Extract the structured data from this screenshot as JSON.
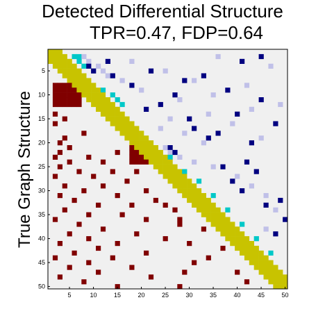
{
  "title": "Detected Differential Structure",
  "subtitle": "TPR=0.47, FDP=0.64",
  "chart_data": {
    "type": "heatmap",
    "n": 50,
    "ylabel": "True Graph Structure",
    "xlabel": "",
    "xticks": [
      5,
      10,
      15,
      20,
      25,
      30,
      35,
      40,
      45,
      50
    ],
    "yticks": [
      5,
      10,
      15,
      20,
      25,
      30,
      35,
      40,
      45,
      50
    ],
    "colors": {
      "background": "#f0f0f0",
      "diagonal": "#c8c300",
      "true_edge": "#800000",
      "band_detected": "#00c8c8",
      "detected_strong": "#000080",
      "detected_weak": "#c0c0e8"
    },
    "lower_blocks": [
      [
        8,
        12,
        2,
        7
      ],
      [
        20,
        24,
        18,
        23
      ]
    ],
    "lower_points": [
      [
        11,
        5
      ],
      [
        14,
        2
      ],
      [
        15,
        4
      ],
      [
        16,
        2
      ],
      [
        18,
        8
      ],
      [
        19,
        4
      ],
      [
        20,
        3
      ],
      [
        21,
        5
      ],
      [
        22,
        3
      ],
      [
        22,
        15
      ],
      [
        23,
        2
      ],
      [
        23,
        9
      ],
      [
        24,
        5
      ],
      [
        24,
        12
      ],
      [
        25,
        3
      ],
      [
        26,
        7
      ],
      [
        26,
        14
      ],
      [
        27,
        2
      ],
      [
        27,
        10
      ],
      [
        28,
        17
      ],
      [
        29,
        4
      ],
      [
        29,
        12
      ],
      [
        30,
        8
      ],
      [
        30,
        21
      ],
      [
        31,
        3
      ],
      [
        31,
        15
      ],
      [
        32,
        6
      ],
      [
        32,
        23
      ],
      [
        33,
        11
      ],
      [
        33,
        18
      ],
      [
        34,
        4
      ],
      [
        34,
        27
      ],
      [
        35,
        9
      ],
      [
        35,
        16
      ],
      [
        36,
        2
      ],
      [
        36,
        21
      ],
      [
        37,
        7
      ],
      [
        37,
        28
      ],
      [
        38,
        12
      ],
      [
        38,
        33
      ],
      [
        39,
        5
      ],
      [
        39,
        19
      ],
      [
        40,
        9
      ],
      [
        40,
        25
      ],
      [
        41,
        3
      ],
      [
        41,
        15
      ],
      [
        42,
        11
      ],
      [
        42,
        37
      ],
      [
        43,
        6
      ],
      [
        43,
        21
      ],
      [
        44,
        2
      ],
      [
        44,
        14
      ],
      [
        45,
        9
      ],
      [
        45,
        31
      ],
      [
        46,
        5
      ],
      [
        46,
        18
      ],
      [
        47,
        11
      ],
      [
        47,
        40
      ],
      [
        48,
        3
      ],
      [
        48,
        22
      ],
      [
        49,
        8
      ],
      [
        49,
        42
      ],
      [
        50,
        15
      ],
      [
        50,
        28
      ],
      [
        26,
        19
      ],
      [
        33,
        25
      ],
      [
        41,
        30
      ],
      [
        36,
        28
      ],
      [
        44,
        34
      ],
      [
        47,
        29
      ]
    ],
    "upper_band": [
      [
        2,
        6
      ],
      [
        3,
        7
      ],
      [
        4,
        8
      ],
      [
        7,
        9
      ],
      [
        8,
        10
      ],
      [
        9,
        11
      ],
      [
        10,
        12
      ],
      [
        11,
        13
      ],
      [
        12,
        14
      ],
      [
        13,
        15
      ],
      [
        14,
        16
      ],
      [
        22,
        24
      ],
      [
        23,
        25
      ],
      [
        24,
        26
      ],
      [
        25,
        27
      ],
      [
        26,
        28
      ],
      [
        27,
        29
      ],
      [
        28,
        30
      ],
      [
        29,
        31
      ],
      [
        30,
        32
      ],
      [
        31,
        33
      ],
      [
        32,
        34
      ],
      [
        33,
        35
      ],
      [
        34,
        36
      ],
      [
        35,
        37
      ],
      [
        36,
        38
      ],
      [
        37,
        39
      ],
      [
        38,
        40
      ],
      [
        39,
        41
      ],
      [
        40,
        42
      ],
      [
        41,
        43
      ],
      [
        42,
        44
      ],
      [
        43,
        45
      ],
      [
        44,
        46
      ],
      [
        45,
        47
      ],
      [
        46,
        48
      ],
      [
        47,
        49
      ],
      [
        2,
        7
      ],
      [
        9,
        12
      ],
      [
        10,
        14
      ],
      [
        11,
        15
      ],
      [
        12,
        16
      ],
      [
        23,
        26
      ],
      [
        26,
        29
      ],
      [
        28,
        32
      ],
      [
        31,
        35
      ],
      [
        34,
        38
      ],
      [
        37,
        41
      ],
      [
        40,
        44
      ],
      [
        43,
        47
      ]
    ],
    "upper_strong": [
      [
        4,
        9
      ],
      [
        5,
        10
      ],
      [
        3,
        13
      ],
      [
        6,
        14
      ],
      [
        8,
        18
      ],
      [
        5,
        22
      ],
      [
        12,
        24
      ],
      [
        10,
        27
      ],
      [
        15,
        30
      ],
      [
        6,
        33
      ],
      [
        18,
        36
      ],
      [
        9,
        38
      ],
      [
        14,
        40
      ],
      [
        3,
        41
      ],
      [
        20,
        43
      ],
      [
        11,
        45
      ],
      [
        25,
        37
      ],
      [
        16,
        48
      ],
      [
        7,
        29
      ],
      [
        21,
        26
      ],
      [
        22,
        27
      ],
      [
        19,
        34
      ],
      [
        28,
        39
      ],
      [
        30,
        41
      ],
      [
        33,
        46
      ],
      [
        39,
        48
      ],
      [
        36,
        50
      ],
      [
        2,
        45
      ],
      [
        13,
        21
      ],
      [
        17,
        31
      ],
      [
        26,
        44
      ],
      [
        32,
        49
      ],
      [
        24,
        42
      ]
    ],
    "upper_weak": [
      [
        2,
        8
      ],
      [
        3,
        9
      ],
      [
        4,
        11
      ],
      [
        5,
        12
      ],
      [
        6,
        13
      ],
      [
        7,
        16
      ],
      [
        3,
        18
      ],
      [
        9,
        20
      ],
      [
        5,
        25
      ],
      [
        11,
        28
      ],
      [
        7,
        31
      ],
      [
        14,
        34
      ],
      [
        2,
        36
      ],
      [
        16,
        39
      ],
      [
        8,
        42
      ],
      [
        19,
        45
      ],
      [
        4,
        47
      ],
      [
        12,
        49
      ],
      [
        21,
        25
      ],
      [
        22,
        26
      ],
      [
        23,
        28
      ],
      [
        18,
        29
      ],
      [
        20,
        33
      ],
      [
        25,
        35
      ],
      [
        27,
        40
      ],
      [
        29,
        43
      ],
      [
        31,
        46
      ],
      [
        34,
        48
      ],
      [
        17,
        24
      ],
      [
        15,
        26
      ],
      [
        10,
        35
      ],
      [
        13,
        43
      ],
      [
        24,
        31
      ],
      [
        38,
        46
      ]
    ]
  }
}
